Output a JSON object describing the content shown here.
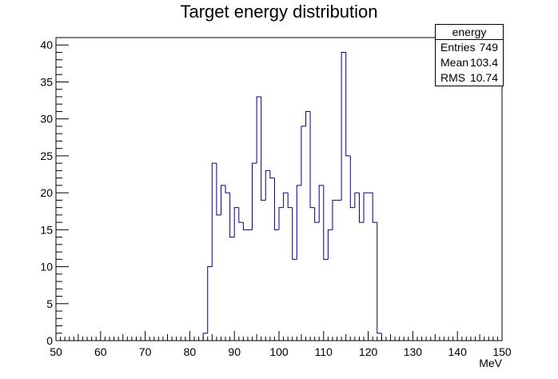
{
  "chart_data": {
    "type": "bar",
    "title": "Target energy distribution",
    "xlabel": "MeV",
    "ylabel": "",
    "xlim": [
      50,
      150
    ],
    "ylim": [
      0,
      41
    ],
    "x_ticks": [
      50,
      60,
      70,
      80,
      90,
      100,
      110,
      120,
      130,
      140,
      150
    ],
    "y_ticks": [
      0,
      5,
      10,
      15,
      20,
      25,
      30,
      35,
      40
    ],
    "bin_width": 1,
    "bin_low_edges": [
      83,
      84,
      85,
      86,
      87,
      88,
      89,
      90,
      91,
      92,
      93,
      94,
      95,
      96,
      97,
      98,
      99,
      100,
      101,
      102,
      103,
      104,
      105,
      106,
      107,
      108,
      109,
      110,
      111,
      112,
      113,
      114,
      115,
      116,
      117,
      118,
      119,
      120,
      121,
      122
    ],
    "values": [
      1,
      10,
      24,
      17,
      21,
      20,
      14,
      18,
      16,
      15,
      15,
      24,
      33,
      19,
      23,
      22,
      15,
      18,
      20,
      18,
      11,
      21,
      29,
      31,
      18,
      16,
      21,
      11,
      15,
      19,
      19,
      39,
      25,
      18,
      20,
      16,
      20,
      20,
      16,
      1
    ],
    "line_color": "#000080",
    "grid": false
  },
  "stats": {
    "name": "energy",
    "rows": [
      {
        "label": "Entries",
        "value": "749"
      },
      {
        "label": "Mean",
        "value": "103.4"
      },
      {
        "label": "RMS",
        "value": "10.74"
      }
    ]
  }
}
